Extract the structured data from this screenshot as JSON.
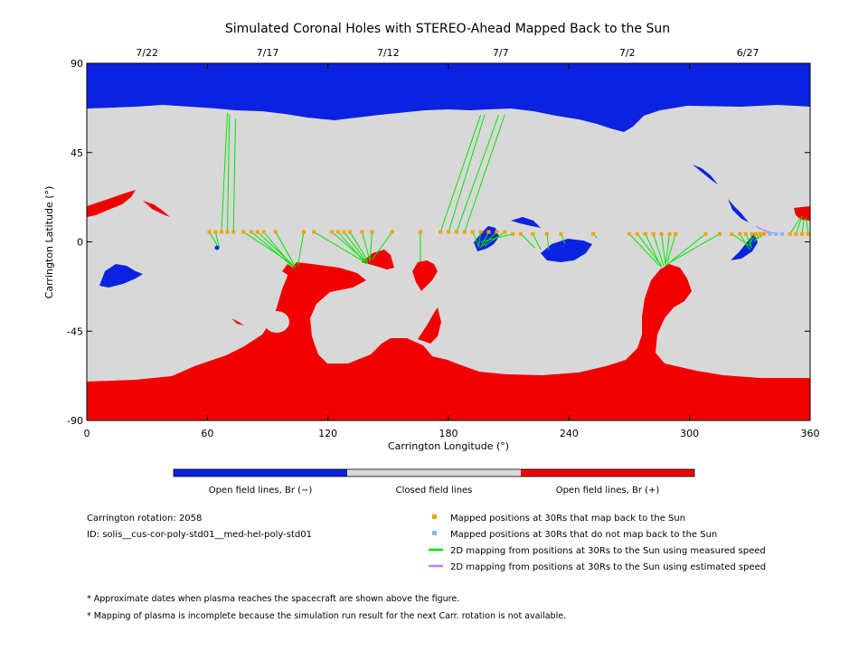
{
  "chart_data": {
    "type": "scatter",
    "title": "Simulated Coronal Holes with STEREO-Ahead Mapped Back to the Sun",
    "xlabel": "Carrington Longitude (°)",
    "ylabel": "Carrington Latitude (°)",
    "xlim": [
      0,
      360
    ],
    "ylim": [
      -90,
      90
    ],
    "x_ticks": [
      "0",
      "60",
      "120",
      "180",
      "240",
      "300",
      "360"
    ],
    "y_ticks": [
      "90",
      "45",
      "0",
      "-45",
      "-90"
    ],
    "date_axis": {
      "labels": [
        "7/22",
        "7/17",
        "7/12",
        "7/7",
        "7/2",
        "6/27"
      ],
      "longitudes": [
        30,
        90,
        150,
        206,
        269,
        329
      ]
    },
    "colors": {
      "open_negative": "#0b22e0",
      "closed": "#d8d8d8",
      "open_positive": "#f20000",
      "mapped_point": "#f2a200",
      "unmapped_point": "#7fb8f0",
      "measured_line": "#00e600",
      "estimated_line": "#bf80ff"
    },
    "mapped_points": [
      {
        "lon": 61,
        "lat": 5,
        "foot": [
          [
            65,
            -2
          ]
        ]
      },
      {
        "lon": 64,
        "lat": 5,
        "foot": [
          [
            66,
            -3
          ]
        ]
      },
      {
        "lon": 67,
        "lat": 5,
        "foot": [
          [
            70,
            65
          ]
        ]
      },
      {
        "lon": 70,
        "lat": 5,
        "foot": [
          [
            71,
            64
          ]
        ]
      },
      {
        "lon": 73,
        "lat": 5,
        "foot": [
          [
            74,
            62
          ]
        ]
      },
      {
        "lon": 78,
        "lat": 5,
        "foot": [
          [
            102,
            -11
          ]
        ]
      },
      {
        "lon": 82,
        "lat": 5,
        "foot": [
          [
            102,
            -12
          ]
        ]
      },
      {
        "lon": 85,
        "lat": 5,
        "foot": [
          [
            103,
            -12
          ]
        ]
      },
      {
        "lon": 88,
        "lat": 5,
        "foot": [
          [
            103,
            -13
          ]
        ]
      },
      {
        "lon": 94,
        "lat": 5,
        "foot": [
          [
            104,
            -13
          ]
        ]
      },
      {
        "lon": 108,
        "lat": 5,
        "foot": [
          [
            105,
            -12
          ]
        ]
      },
      {
        "lon": 113,
        "lat": 5,
        "foot": [
          [
            138,
            -10
          ]
        ]
      },
      {
        "lon": 122,
        "lat": 5,
        "foot": [
          [
            139,
            -10
          ]
        ]
      },
      {
        "lon": 125,
        "lat": 5,
        "foot": [
          [
            139,
            -11
          ]
        ]
      },
      {
        "lon": 128,
        "lat": 5,
        "foot": [
          [
            140,
            -11
          ]
        ]
      },
      {
        "lon": 131,
        "lat": 5,
        "foot": [
          [
            140,
            -10
          ]
        ]
      },
      {
        "lon": 137,
        "lat": 5,
        "foot": [
          [
            141,
            -10
          ]
        ]
      },
      {
        "lon": 142,
        "lat": 5,
        "foot": [
          [
            141,
            -9
          ]
        ]
      },
      {
        "lon": 152,
        "lat": 5,
        "foot": [
          [
            142,
            -9
          ]
        ]
      },
      {
        "lon": 166,
        "lat": 5,
        "foot": [
          [
            166,
            -10
          ]
        ]
      },
      {
        "lon": 176,
        "lat": 5,
        "foot": [
          [
            196,
            64
          ]
        ]
      },
      {
        "lon": 180,
        "lat": 5,
        "foot": [
          [
            198,
            64
          ]
        ]
      },
      {
        "lon": 184,
        "lat": 5,
        "foot": [
          [
            205,
            64
          ]
        ]
      },
      {
        "lon": 188,
        "lat": 5,
        "foot": [
          [
            208,
            64
          ]
        ]
      },
      {
        "lon": 192,
        "lat": 5,
        "foot": [
          [
            195,
            -2
          ]
        ]
      },
      {
        "lon": 196,
        "lat": 5,
        "foot": [
          [
            195,
            -3
          ]
        ]
      },
      {
        "lon": 200,
        "lat": 5,
        "foot": [
          [
            196,
            -3
          ]
        ]
      },
      {
        "lon": 204,
        "lat": 5,
        "foot": [
          [
            197,
            -2
          ]
        ]
      },
      {
        "lon": 208,
        "lat": 5,
        "foot": [
          [
            198,
            -2
          ]
        ]
      },
      {
        "lon": 212,
        "lat": 4,
        "foot": [
          [
            196,
            0
          ]
        ]
      },
      {
        "lon": 216,
        "lat": 4,
        "foot": [
          [
            223,
            -3
          ]
        ]
      },
      {
        "lon": 222,
        "lat": 4,
        "foot": [
          [
            226,
            -4
          ]
        ]
      },
      {
        "lon": 229,
        "lat": 4,
        "foot": [
          [
            230,
            -4
          ]
        ]
      },
      {
        "lon": 236,
        "lat": 4,
        "foot": [
          [
            238,
            -1
          ]
        ]
      },
      {
        "lon": 252,
        "lat": 4,
        "foot": [
          [
            254,
            2
          ]
        ]
      },
      {
        "lon": 270,
        "lat": 4,
        "foot": [
          [
            285,
            -12
          ]
        ]
      },
      {
        "lon": 274,
        "lat": 4,
        "foot": [
          [
            286,
            -12
          ]
        ]
      },
      {
        "lon": 278,
        "lat": 4,
        "foot": [
          [
            286,
            -13
          ]
        ]
      },
      {
        "lon": 282,
        "lat": 4,
        "foot": [
          [
            287,
            -12
          ]
        ]
      },
      {
        "lon": 286,
        "lat": 4,
        "foot": [
          [
            288,
            -11
          ]
        ]
      },
      {
        "lon": 290,
        "lat": 4,
        "foot": [
          [
            288,
            -12
          ]
        ]
      },
      {
        "lon": 293,
        "lat": 4,
        "foot": [
          [
            289,
            -10
          ]
        ]
      },
      {
        "lon": 308,
        "lat": 4,
        "foot": [
          [
            288,
            -12
          ]
        ]
      },
      {
        "lon": 315,
        "lat": 4,
        "foot": [
          [
            289,
            -11
          ]
        ]
      },
      {
        "lon": 321,
        "lat": 4,
        "foot": [
          [
            330,
            -2
          ]
        ]
      },
      {
        "lon": 325,
        "lat": 4,
        "foot": [
          [
            330,
            -4
          ]
        ]
      },
      {
        "lon": 328,
        "lat": 4,
        "foot": [
          [
            331,
            -3
          ]
        ]
      },
      {
        "lon": 331,
        "lat": 4,
        "foot": [
          [
            330,
            -2
          ]
        ]
      },
      {
        "lon": 333,
        "lat": 4,
        "foot": [
          [
            330,
            -1
          ]
        ]
      },
      {
        "lon": 335,
        "lat": 4,
        "foot": [
          [
            332,
            0
          ]
        ]
      },
      {
        "lon": 337,
        "lat": 4,
        "foot": [
          [
            333,
            1
          ]
        ]
      },
      {
        "lon": 350,
        "lat": 4,
        "foot": [
          [
            355,
            12
          ]
        ]
      },
      {
        "lon": 353,
        "lat": 4,
        "foot": [
          [
            356,
            13
          ]
        ]
      },
      {
        "lon": 356,
        "lat": 4,
        "foot": [
          [
            357,
            12
          ]
        ]
      },
      {
        "lon": 359,
        "lat": 4,
        "foot": [
          [
            358,
            12
          ]
        ]
      }
    ],
    "unmapped_points": [
      {
        "lon": 340,
        "lat": 4
      },
      {
        "lon": 343,
        "lat": 4
      },
      {
        "lon": 346,
        "lat": 4
      }
    ],
    "estimated_lines": [
      {
        "from": [
          340,
          4
        ],
        "to": [
          333,
          8
        ]
      },
      {
        "from": [
          343,
          4
        ],
        "to": [
          334,
          7
        ]
      }
    ],
    "legend": {
      "colorbar": [
        "Open field lines, Br (−)",
        "Closed field lines",
        "Open field lines, Br (+)"
      ],
      "symbols": [
        "Mapped positions at 30Rs that map back to the Sun",
        "Mapped positions at 30Rs that do not map back to the Sun",
        "2D mapping from positions at 30Rs to the Sun using measured speed",
        "2D mapping from positions at 30Rs to the Sun using estimated speed"
      ]
    },
    "info": {
      "rotation": "Carrington rotation: 2058",
      "id": "ID: solis__cus-cor-poly-std01__med-hel-poly-std01"
    },
    "notes": [
      "* Approximate dates when plasma reaches the spacecraft are shown above the figure.",
      "* Mapping of plasma is incomplete because the simulation run result for the next Carr. rotation is not available."
    ]
  }
}
